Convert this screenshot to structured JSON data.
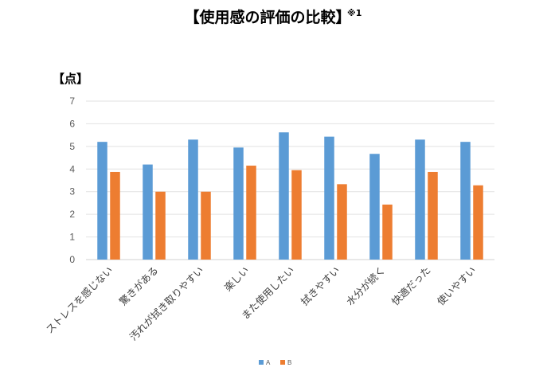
{
  "chart_data": {
    "type": "bar",
    "title": "【使用感の評価の比較】",
    "title_superscript": "※1",
    "unit_label": "【点】",
    "xlabel": "",
    "ylabel": "",
    "ylim": [
      0,
      7
    ],
    "yticks": [
      0,
      1,
      2,
      3,
      4,
      5,
      6,
      7
    ],
    "grid": true,
    "legend_position": "bottom",
    "categories": [
      "ストレスを感じない",
      "驚きがある",
      "汚れが拭き取りやすい",
      "楽しい",
      "また使用したい",
      "拭きやすい",
      "水分が続く",
      "快適だった",
      "使いやすい"
    ],
    "series": [
      {
        "name": "A",
        "color": "#5b9bd5",
        "values": [
          5.2,
          4.2,
          5.3,
          4.95,
          5.62,
          5.43,
          4.67,
          5.3,
          5.2
        ]
      },
      {
        "name": "B",
        "color": "#ed7d31",
        "values": [
          3.87,
          3.0,
          3.0,
          4.15,
          3.95,
          3.33,
          2.43,
          3.87,
          3.28
        ]
      }
    ]
  }
}
